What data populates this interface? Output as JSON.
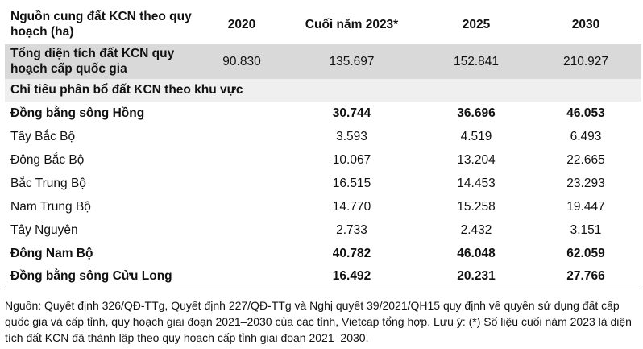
{
  "table": {
    "headers": [
      "Nguồn cung đất KCN theo quy hoạch (ha)",
      "2020",
      "Cuối năm 2023*",
      "2025",
      "2030"
    ],
    "total_row": {
      "label": "Tổng diện tích đất KCN quy hoạch cấp quốc gia",
      "values": [
        "90.830",
        "135.697",
        "152.841",
        "210.927"
      ]
    },
    "section_label": "Chỉ tiêu phân bổ đất KCN theo khu vực",
    "rows": [
      {
        "label": "Đồng bằng sông Hồng",
        "values": [
          "30.744",
          "36.696",
          "46.053"
        ]
      },
      {
        "label": "Tây Bắc Bộ",
        "values": [
          "3.593",
          "4.519",
          "6.493"
        ]
      },
      {
        "label": "Đông Bắc Bộ",
        "values": [
          "10.067",
          "13.204",
          "22.665"
        ]
      },
      {
        "label": "Bắc Trung Bộ",
        "values": [
          "16.515",
          "14.453",
          "23.293"
        ]
      },
      {
        "label": "Nam Trung Bộ",
        "values": [
          "14.770",
          "15.258",
          "19.447"
        ]
      },
      {
        "label": "Tây Nguyên",
        "values": [
          "2.733",
          "2.432",
          "3.151"
        ]
      },
      {
        "label": "Đông Nam Bộ",
        "values": [
          "40.782",
          "46.048",
          "62.059"
        ]
      },
      {
        "label": "Đồng bằng sông Cửu Long",
        "values": [
          "16.492",
          "20.231",
          "27.766"
        ]
      }
    ]
  },
  "footnote": "Nguồn: Quyết định 326/QĐ-TTg, Quyết định 227/QĐ-TTg và Nghị quyết 39/2021/QH15 quy định về quyền sử dụng đất cấp quốc gia và cấp tỉnh, quy hoạch giai đoạn 2021–2030 của các tỉnh, Vietcap tổng hợp. Lưu ý: (*) Số liệu cuối năm 2023 là diện tích đất KCN đã thành lập theo quy hoạch cấp tỉnh giai đoạn 2021–2030."
}
